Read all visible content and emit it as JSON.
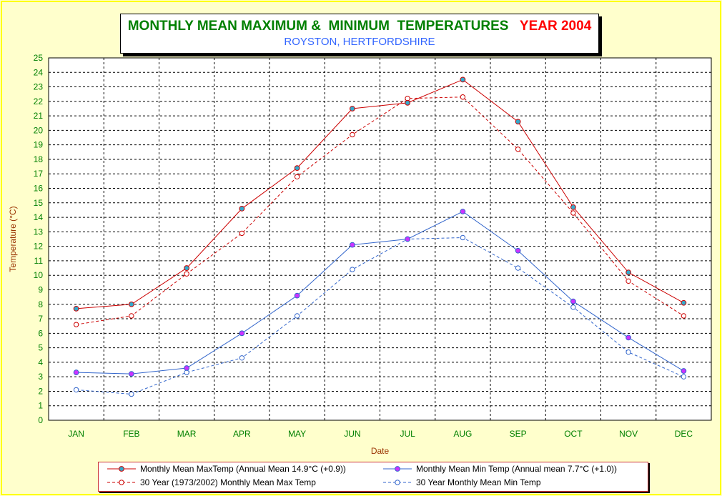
{
  "title": {
    "main": "MONTHLY MEAN MAXIMUM &  MINIMUM  TEMPERATURES",
    "year": "YEAR 2004",
    "subtitle": "ROYSTON, HERTFORDSHIRE"
  },
  "colors": {
    "background": "#ffffcc",
    "border": "#ffff00",
    "max_series": "#cc0000",
    "min_series": "#3366cc",
    "max_marker": "#33aacc",
    "min_marker": "#cc33ff",
    "title_green": "#008000",
    "title_red": "#ff0000",
    "subtitle_blue": "#3366ff",
    "tick_green": "#008000",
    "axis_title_brown": "#993300"
  },
  "chart_data": {
    "type": "line",
    "xlabel": "Date",
    "ylabel": "Temperature (°C)",
    "ylim": [
      0,
      25
    ],
    "yticks": [
      "0",
      "1",
      "2",
      "3",
      "4",
      "5",
      "6",
      "7",
      "8",
      "9",
      "10",
      "11",
      "12",
      "13",
      "14",
      "15",
      "16",
      "17",
      "18",
      "19",
      "20",
      "21",
      "22",
      "23",
      "24",
      "25"
    ],
    "grid": true,
    "legend_position": "bottom",
    "categories": [
      "JAN",
      "FEB",
      "MAR",
      "APR",
      "MAY",
      "JUN",
      "JUL",
      "AUG",
      "SEP",
      "OCT",
      "NOV",
      "DEC"
    ],
    "series": [
      {
        "name": "Monthly Mean MaxTemp (Annual Mean 14.9°C (+0.9))",
        "style": "solid",
        "color": "#cc0000",
        "marker": "filled-circle",
        "marker_color": "#33aacc",
        "values": [
          7.7,
          8.0,
          10.5,
          14.6,
          17.4,
          21.5,
          21.9,
          23.5,
          20.6,
          14.7,
          10.2,
          8.1
        ]
      },
      {
        "name": "Monthly Mean Min Temp (Annual mean 7.7°C (+1.0))",
        "style": "solid",
        "color": "#3366cc",
        "marker": "filled-circle",
        "marker_color": "#cc33ff",
        "values": [
          3.3,
          3.2,
          3.6,
          6.0,
          8.6,
          12.1,
          12.5,
          14.4,
          11.7,
          8.2,
          5.7,
          3.4
        ]
      },
      {
        "name": "30 Year (1973/2002) Monthly Mean Max Temp",
        "style": "dashed",
        "color": "#cc0000",
        "marker": "open-circle",
        "marker_color": "#cc0000",
        "values": [
          6.6,
          7.2,
          10.1,
          12.9,
          16.8,
          19.7,
          22.2,
          22.3,
          18.7,
          14.3,
          9.6,
          7.2
        ]
      },
      {
        "name": "30 Year Monthly Mean Min Temp",
        "style": "dashed",
        "color": "#3366cc",
        "marker": "open-circle",
        "marker_color": "#3366cc",
        "values": [
          2.1,
          1.8,
          3.3,
          4.3,
          7.2,
          10.4,
          12.5,
          12.6,
          10.5,
          7.8,
          4.7,
          3.0
        ]
      }
    ]
  }
}
